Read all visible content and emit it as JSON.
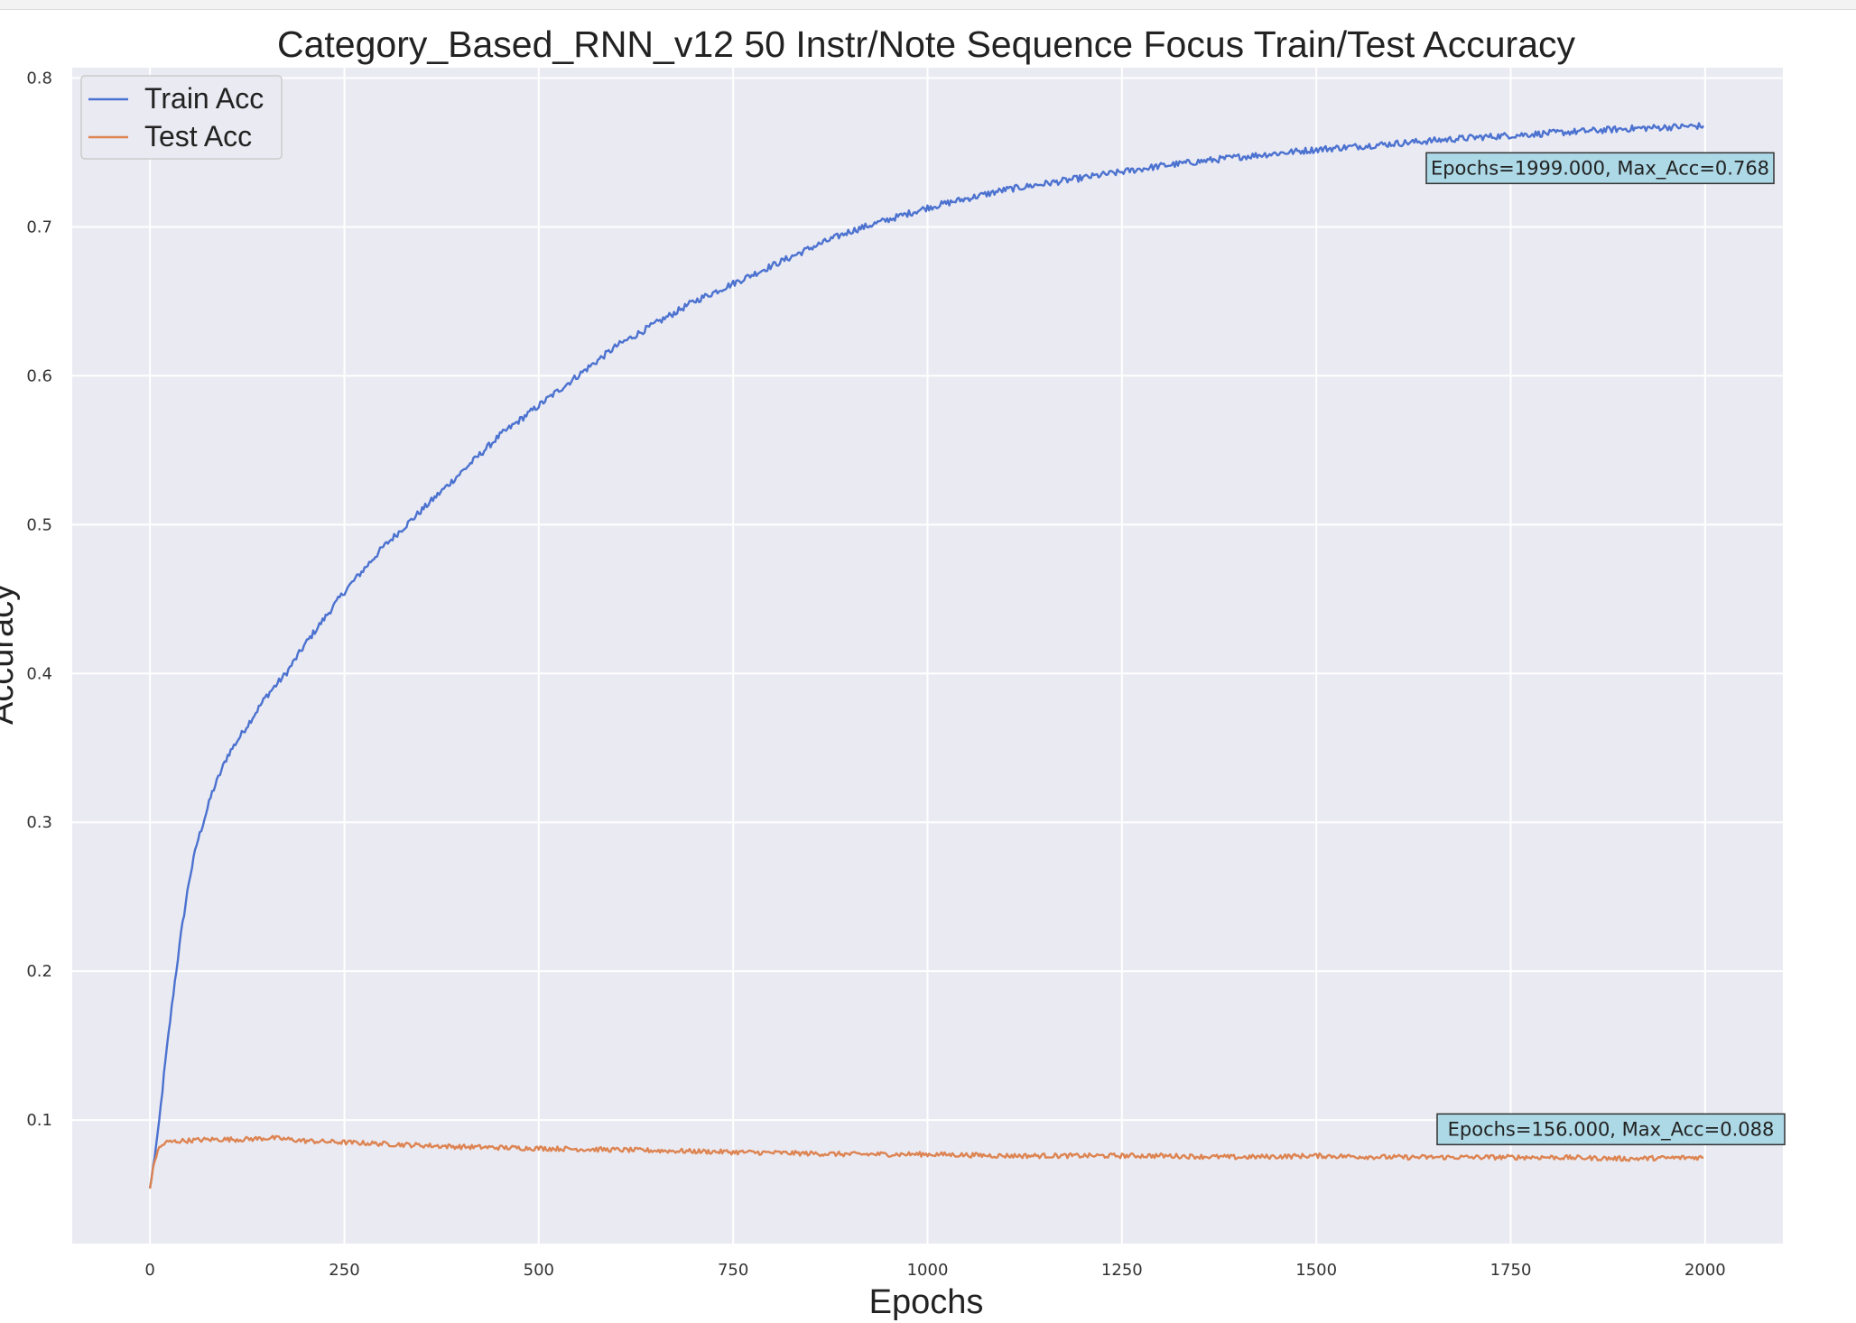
{
  "chart_data": {
    "type": "line",
    "title": "Category_Based_RNN_v12 50 Instr/Note Sequence Focus Train/Test Accuracy",
    "xlabel": "Epochs",
    "ylabel": "Accuracy",
    "xlim": [
      -100,
      2100
    ],
    "ylim": [
      0.017,
      0.807
    ],
    "xticks": [
      0,
      250,
      500,
      750,
      1000,
      1250,
      1500,
      1750,
      2000
    ],
    "xtick_labels": [
      "0",
      "250",
      "500",
      "750",
      "1000",
      "1250",
      "1500",
      "1750",
      "2000"
    ],
    "yticks": [
      0.1,
      0.2,
      0.3,
      0.4,
      0.5,
      0.6,
      0.7,
      0.8
    ],
    "ytick_labels": [
      "0.1",
      "0.2",
      "0.3",
      "0.4",
      "0.5",
      "0.6",
      "0.7",
      "0.8"
    ],
    "grid": true,
    "legend_position": "top-left",
    "series": [
      {
        "name": "Train Acc",
        "color": "#4c72d0",
        "x": [
          0,
          10,
          20,
          30,
          40,
          50,
          60,
          80,
          100,
          125,
          150,
          175,
          200,
          250,
          300,
          350,
          400,
          450,
          500,
          550,
          600,
          650,
          700,
          750,
          800,
          850,
          900,
          950,
          1000,
          1100,
          1200,
          1300,
          1400,
          1500,
          1600,
          1700,
          1800,
          1900,
          1999
        ],
        "y": [
          0.054,
          0.09,
          0.14,
          0.185,
          0.225,
          0.26,
          0.285,
          0.32,
          0.345,
          0.365,
          0.385,
          0.4,
          0.42,
          0.455,
          0.485,
          0.51,
          0.535,
          0.56,
          0.58,
          0.6,
          0.62,
          0.635,
          0.65,
          0.662,
          0.674,
          0.686,
          0.697,
          0.705,
          0.713,
          0.725,
          0.733,
          0.741,
          0.747,
          0.752,
          0.756,
          0.76,
          0.763,
          0.766,
          0.768
        ]
      },
      {
        "name": "Test Acc",
        "color": "#dd8452",
        "x": [
          0,
          5,
          10,
          20,
          40,
          80,
          120,
          156,
          200,
          300,
          400,
          500,
          600,
          700,
          800,
          900,
          1000,
          1100,
          1200,
          1300,
          1400,
          1500,
          1600,
          1700,
          1800,
          1900,
          1999
        ],
        "y": [
          0.054,
          0.07,
          0.08,
          0.085,
          0.086,
          0.087,
          0.087,
          0.088,
          0.086,
          0.084,
          0.082,
          0.081,
          0.08,
          0.079,
          0.078,
          0.077,
          0.077,
          0.076,
          0.076,
          0.076,
          0.075,
          0.076,
          0.075,
          0.075,
          0.075,
          0.074,
          0.075
        ]
      }
    ],
    "annotations": [
      {
        "text": "Epochs=1999.000, Max_Acc=0.768",
        "x": 1999,
        "y": 0.768
      },
      {
        "text": "Epochs=156.000, Max_Acc=0.088",
        "x": 156,
        "y": 0.088
      }
    ],
    "colors": {
      "plot_background": "#eaeaf2",
      "grid": "#ffffff",
      "annotation_box": "#add8e6"
    }
  }
}
